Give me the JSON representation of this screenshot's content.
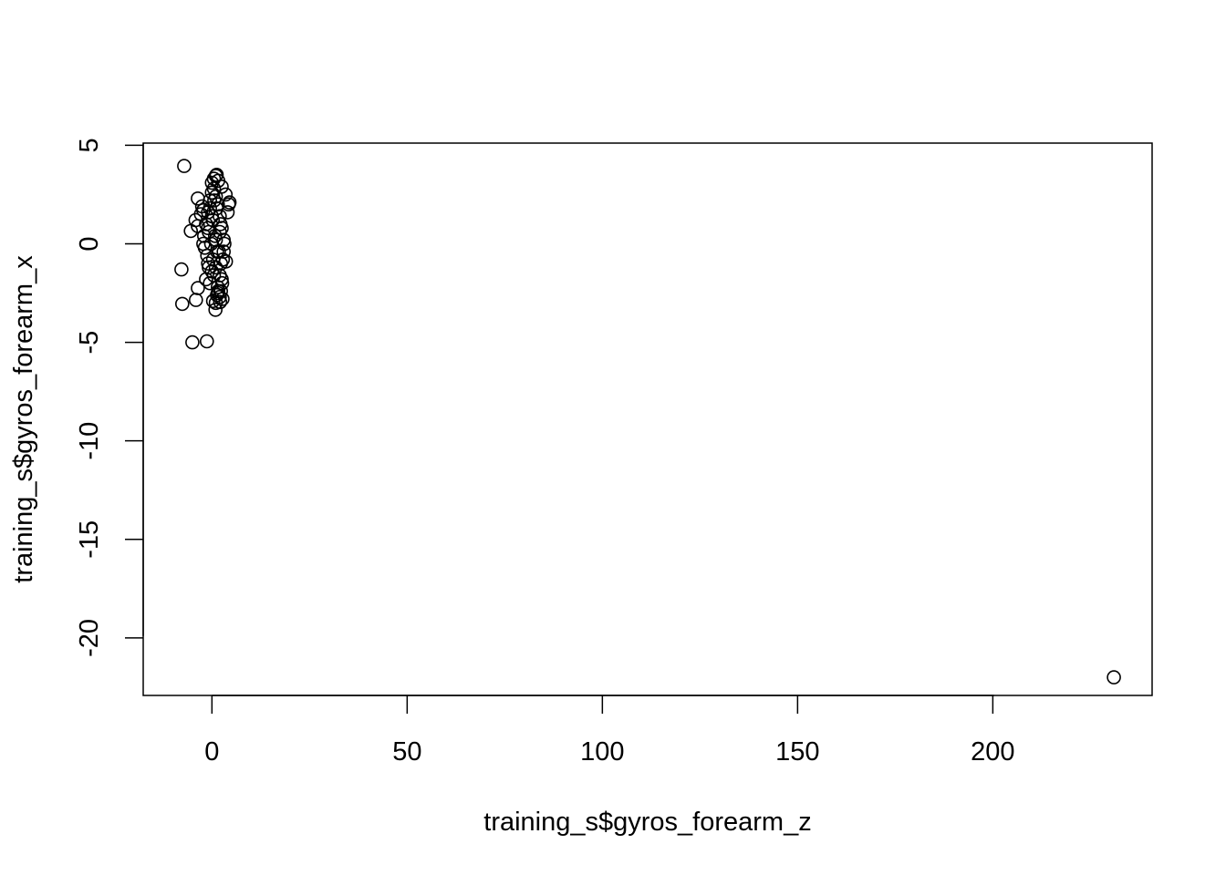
{
  "chart_data": {
    "type": "scatter",
    "title": "",
    "xlabel": "training_s$gyros_forearm_z",
    "ylabel": "training_s$gyros_forearm_x",
    "xlim": [
      -17.6,
      240.8
    ],
    "ylim": [
      -22.92,
      5.11
    ],
    "xticks": [
      0,
      50,
      100,
      150,
      200
    ],
    "yticks": [
      5,
      0,
      -5,
      -10,
      -15,
      -20
    ],
    "xtick_labels": [
      "0",
      "50",
      "100",
      "150",
      "200"
    ],
    "ytick_labels": [
      "5",
      "0",
      "-5",
      "-10",
      "-15",
      "-20"
    ],
    "grid": false,
    "legend": "none",
    "marker": "open-circle",
    "color": "#000000",
    "series": [
      {
        "x": [
          -7.1,
          -7.8,
          -7.6,
          -5.0,
          -1.3,
          -4.1,
          -3.6,
          -3.6,
          -5.4,
          -4.2,
          -3.6,
          -2.8,
          -2.5,
          -2.2,
          0.0,
          0.5,
          1.0,
          1.2,
          1.6,
          2.5,
          3.5,
          4.3,
          4.0,
          3.6,
          4.5,
          0.9,
          2.1,
          2.7,
          1.3,
          0.3,
          1.0,
          2.0,
          2.3,
          1.5,
          231.0,
          -2.0,
          -1.5,
          -1.0,
          -0.5,
          0.0,
          0.5,
          1.0,
          1.5,
          2.0,
          2.5,
          3.0,
          -1.8,
          -0.8,
          0.2,
          1.2,
          2.2,
          3.2,
          -1.2,
          -0.2,
          0.8,
          1.8,
          2.8,
          -2.2,
          -1.0,
          0.0,
          1.0,
          2.0,
          3.0,
          -1.5,
          -0.5,
          0.5,
          1.5,
          2.5,
          -1.0,
          0.0,
          1.0,
          2.0,
          -0.8,
          0.3,
          1.3,
          2.3,
          -0.5,
          0.6,
          1.6,
          2.6
        ],
        "y": [
          3.95,
          -1.3,
          -3.05,
          -5.0,
          -4.95,
          -2.85,
          -2.25,
          2.3,
          0.65,
          1.2,
          0.9,
          1.5,
          1.9,
          1.7,
          3.1,
          3.3,
          3.45,
          3.5,
          3.2,
          2.9,
          2.5,
          2.0,
          1.6,
          -0.9,
          2.1,
          -3.35,
          -2.95,
          -2.8,
          -2.6,
          -2.9,
          -3.0,
          -2.7,
          -2.4,
          -2.5,
          -22.0,
          0.4,
          1.0,
          1.6,
          2.2,
          2.6,
          2.8,
          2.4,
          2.0,
          1.4,
          0.8,
          0.2,
          -0.2,
          0.6,
          1.2,
          1.8,
          1.0,
          0.0,
          -0.6,
          0.0,
          0.4,
          -0.4,
          -0.8,
          0.0,
          -1.0,
          -1.4,
          -1.2,
          -1.6,
          -0.4,
          -1.8,
          -2.0,
          -1.6,
          -2.2,
          -1.8,
          0.8,
          1.4,
          0.2,
          0.6,
          -1.2,
          -0.8,
          -0.4,
          -1.0,
          1.8,
          2.2,
          -2.4,
          -2.0
        ]
      }
    ]
  }
}
